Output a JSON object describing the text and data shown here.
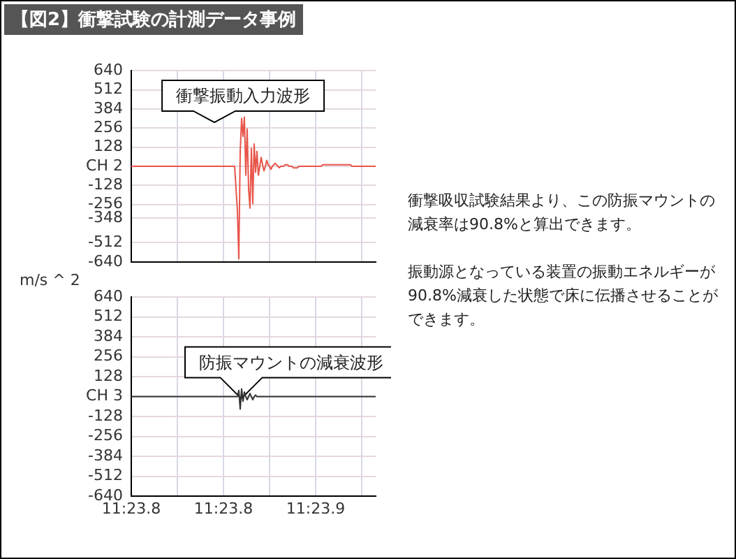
{
  "chart_data": [
    {
      "type": "line",
      "title": "【図2】衝撃試験の計測データ事例",
      "ylabel": "m/s ^ 2",
      "categories": [
        null,
        null,
        null,
        null,
        null,
        null,
        null,
        null,
        null,
        null,
        null,
        null,
        null,
        null,
        null,
        null,
        null,
        null,
        null,
        null,
        null,
        null,
        null,
        null,
        null,
        null,
        null,
        null,
        null,
        null,
        null,
        null,
        null,
        null,
        null,
        null,
        null,
        null,
        null,
        null,
        null,
        null,
        null,
        null,
        null,
        null,
        null,
        null,
        null,
        null,
        null,
        null,
        null,
        null,
        null,
        null,
        null,
        null,
        null,
        null,
        null,
        null,
        null,
        null,
        null,
        null,
        null,
        null,
        null,
        null,
        null,
        null,
        null,
        null,
        null,
        null,
        null,
        null,
        null,
        null,
        null,
        null,
        null,
        null,
        null,
        null,
        null,
        null,
        null,
        null,
        null,
        null,
        null,
        null,
        null,
        null,
        null,
        null,
        null,
        null,
        null,
        null,
        null,
        null,
        null,
        null,
        null,
        null,
        null,
        null,
        null,
        null,
        null,
        null,
        null,
        null,
        null,
        null,
        null,
        null,
        null,
        null,
        null,
        null,
        null,
        null,
        null,
        null,
        null,
        null,
        null,
        null,
        null,
        null,
        null,
        null,
        null,
        null,
        null,
        null,
        null,
        null,
        null,
        null,
        null,
        null,
        null,
        null,
        null,
        null,
        null,
        null,
        null,
        null,
        null,
        null,
        null,
        null,
        null,
        null,
        null,
        null,
        null,
        null,
        null,
        null,
        null,
        null,
        null,
        null,
        null,
        null,
        null,
        null,
        null,
        null
      ],
      "series": [
        {
          "color": "#e8554a",
          "values": [
            0,
            0,
            0,
            0,
            0,
            0,
            0,
            0,
            0,
            0,
            0,
            0,
            0,
            0,
            0,
            0,
            0,
            0,
            0,
            0,
            0,
            0,
            0,
            0,
            0,
            0,
            0,
            0,
            0,
            0,
            0,
            0,
            0,
            0,
            0,
            0,
            0,
            0,
            0,
            0,
            0,
            0,
            0,
            0,
            0,
            0,
            0,
            0,
            0,
            0,
            0,
            0,
            0,
            0,
            0,
            0,
            0,
            0,
            0,
            0,
            0,
            0,
            0,
            0,
            0,
            0,
            0,
            0,
            0,
            0,
            0,
            0,
            0,
            0,
            0,
            -150,
            -300,
            -620,
            100,
            320,
            200,
            330,
            -60,
            250,
            -150,
            -280,
            120,
            -250,
            150,
            -40,
            100,
            -60,
            0,
            60,
            10,
            -30,
            0,
            40,
            10,
            0,
            -20,
            0,
            10,
            20,
            10,
            0,
            -10,
            0,
            0,
            0,
            10,
            10,
            10,
            0,
            0,
            0,
            -10,
            -10,
            -10,
            -10,
            0,
            0,
            0,
            0,
            0,
            0,
            0,
            0,
            0,
            0,
            0,
            0,
            0,
            0,
            0,
            0,
            0,
            10,
            10,
            10,
            10,
            10,
            10,
            10,
            10,
            10,
            10,
            10,
            10,
            10,
            10,
            10,
            10,
            10,
            10,
            10,
            10,
            10,
            0,
            0,
            0,
            0,
            0,
            0,
            0,
            0,
            0,
            0,
            0,
            0,
            0,
            0,
            0,
            0,
            0,
            0
          ]
        }
      ],
      "ylim": [
        -640,
        640
      ],
      "yticks": [
        -640,
        -512,
        -348,
        -256,
        -128,
        {
          "value": 0,
          "label": "CH 2"
        },
        128,
        256,
        384,
        512,
        640
      ],
      "grid": true,
      "annotations": [
        "衝撃振動入力波形",
        "衝撃吸収試験結果より、この防振マウントの減衰率は90.8%と算出できます。",
        "振動源となっている装置の振動エネルギーが90.8%減衰した状態で床に伝播させることができます。"
      ]
    },
    {
      "type": "line",
      "categories": [
        "11:23.8",
        null,
        null,
        null,
        null,
        null,
        null,
        null,
        null,
        null,
        null,
        null,
        null,
        null,
        null,
        null,
        null,
        null,
        null,
        null,
        null,
        null,
        null,
        null,
        null,
        null,
        null,
        null,
        null,
        null,
        null,
        null,
        null,
        null,
        null,
        null,
        null,
        null,
        null,
        null,
        null,
        null,
        null,
        null,
        null,
        null,
        null,
        null,
        null,
        null,
        null,
        null,
        null,
        null,
        null,
        null,
        null,
        null,
        null,
        null,
        null,
        null,
        null,
        null,
        null,
        null,
        "11:23.8",
        null,
        null,
        null,
        null,
        null,
        null,
        null,
        null,
        null,
        null,
        null,
        null,
        null,
        null,
        null,
        null,
        null,
        null,
        null,
        null,
        null,
        null,
        null,
        null,
        null,
        null,
        null,
        null,
        null,
        null,
        null,
        null,
        null,
        null,
        null,
        null,
        null,
        null,
        null,
        null,
        null,
        null,
        null,
        null,
        null,
        null,
        null,
        null,
        null,
        null,
        null,
        null,
        null,
        null,
        null,
        null,
        null,
        null,
        null,
        null,
        null,
        null,
        null,
        null,
        null,
        "11:23.9",
        null,
        null,
        null,
        null,
        null,
        null,
        null,
        null,
        null,
        null,
        null,
        null,
        null,
        null,
        null,
        null,
        null,
        null,
        null,
        null,
        null,
        null,
        null,
        null,
        null,
        null,
        null,
        null,
        null,
        null,
        null,
        null,
        null,
        null,
        null,
        null,
        null,
        null,
        null,
        null,
        null,
        null,
        null
      ],
      "series": [
        {
          "color": "#333333",
          "values": [
            0,
            0,
            0,
            0,
            0,
            0,
            0,
            0,
            0,
            0,
            0,
            0,
            0,
            0,
            0,
            0,
            0,
            0,
            0,
            0,
            0,
            0,
            0,
            0,
            0,
            0,
            0,
            0,
            0,
            0,
            0,
            0,
            0,
            0,
            0,
            0,
            0,
            0,
            0,
            0,
            0,
            0,
            0,
            0,
            0,
            0,
            0,
            0,
            0,
            0,
            0,
            0,
            0,
            0,
            0,
            0,
            0,
            0,
            0,
            0,
            0,
            0,
            0,
            0,
            0,
            0,
            0,
            0,
            0,
            0,
            0,
            0,
            0,
            0,
            0,
            0,
            0,
            40,
            -80,
            50,
            -30,
            30,
            0,
            -20,
            0,
            20,
            0,
            -20,
            0,
            10,
            0,
            0,
            0,
            0,
            0,
            0,
            0,
            0,
            0,
            0,
            0,
            0,
            0,
            0,
            0,
            0,
            0,
            0,
            0,
            0,
            0,
            0,
            0,
            0,
            0,
            0,
            0,
            0,
            0,
            0,
            0,
            0,
            0,
            0,
            0,
            0,
            0,
            0,
            0,
            0,
            0,
            0,
            0,
            0,
            0,
            0,
            0,
            0,
            0,
            0,
            0,
            0,
            0,
            0,
            0,
            0,
            0,
            0,
            0,
            0,
            0,
            0,
            0,
            0,
            0,
            0,
            0,
            0,
            0,
            0,
            0,
            0,
            0,
            0,
            0,
            0,
            0,
            0,
            0,
            0,
            0,
            0,
            0,
            0,
            0,
            0
          ]
        }
      ],
      "ylim": [
        -640,
        640
      ],
      "yticks": [
        -640,
        -512,
        -384,
        -256,
        -128,
        {
          "value": 0,
          "label": "CH 3"
        },
        128,
        256,
        384,
        512,
        640
      ],
      "grid": true,
      "annotations": [
        "防振マウントの減衰波形"
      ]
    }
  ]
}
